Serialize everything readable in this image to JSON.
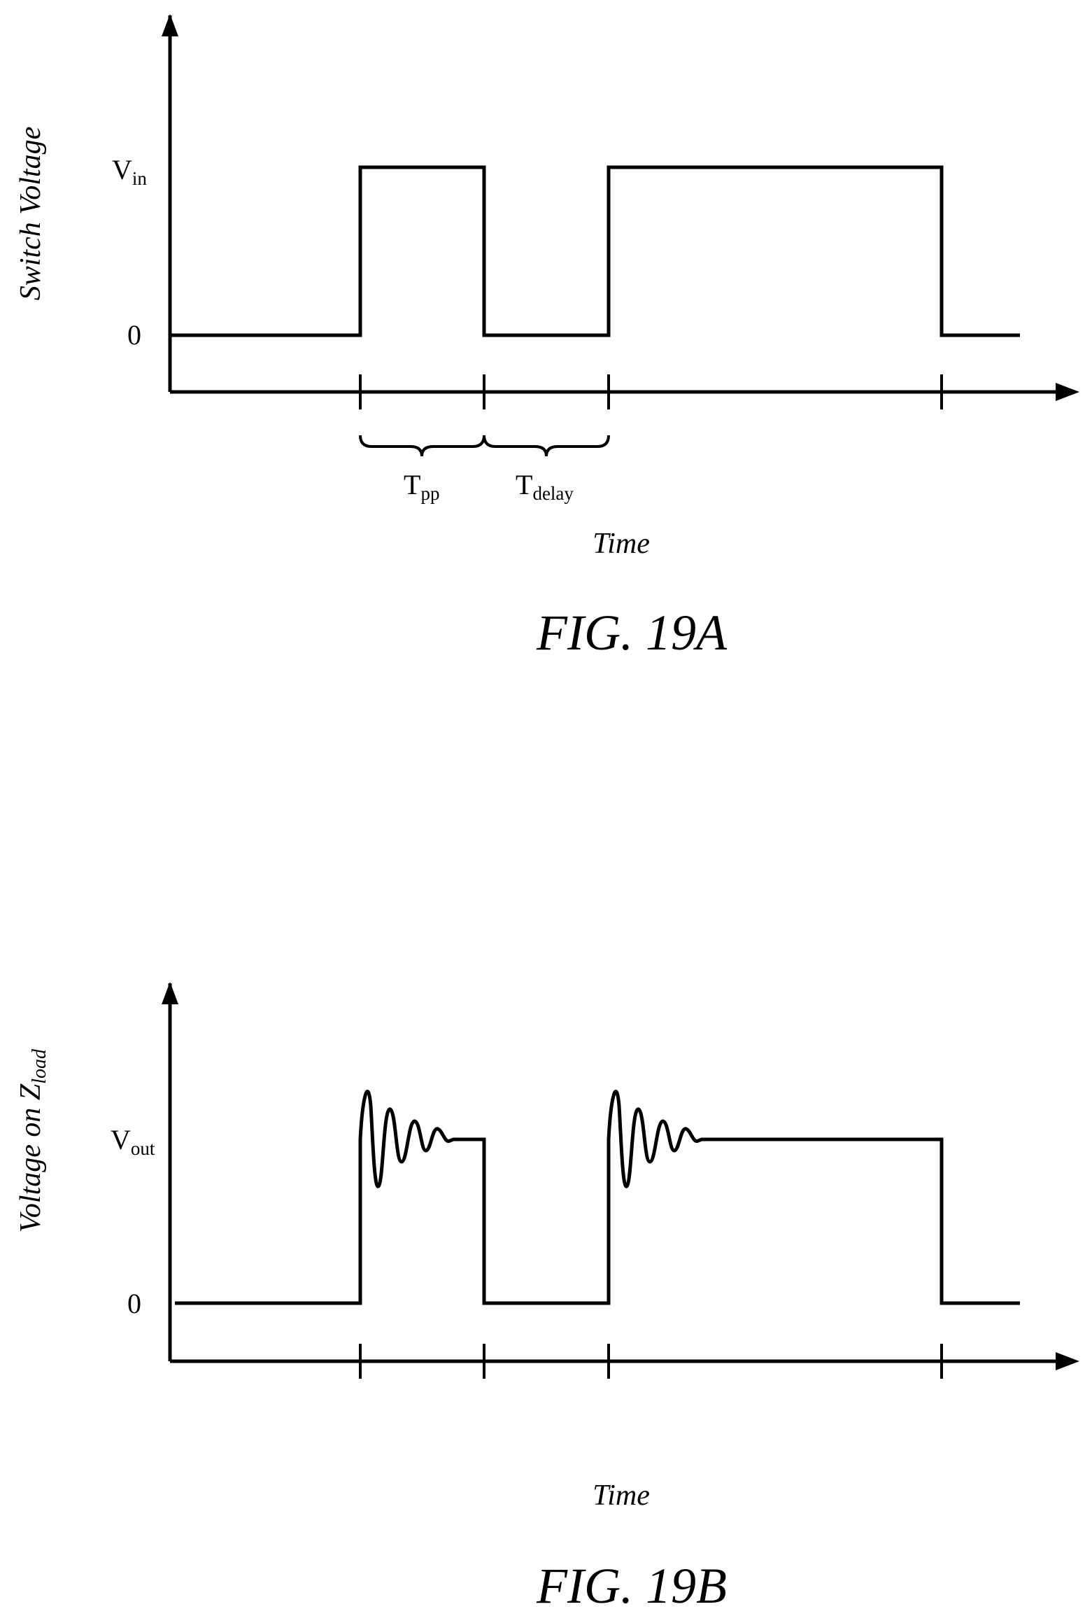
{
  "figure_a": {
    "caption": "FIG. 19A",
    "y_axis_label": "Switch Voltage",
    "x_axis_label": "Time",
    "level_high": {
      "base": "V",
      "sub": "in"
    },
    "level_zero": "0",
    "interval_1": {
      "base": "T",
      "sub": "pp"
    },
    "interval_2": {
      "base": "T",
      "sub": "delay"
    }
  },
  "figure_b": {
    "caption": "FIG. 19B",
    "y_axis_label_main": "Voltage on Z",
    "y_axis_label_sub": "load",
    "x_axis_label": "Time",
    "level_high": {
      "base": "V",
      "sub": "out"
    },
    "level_zero": "0"
  }
}
